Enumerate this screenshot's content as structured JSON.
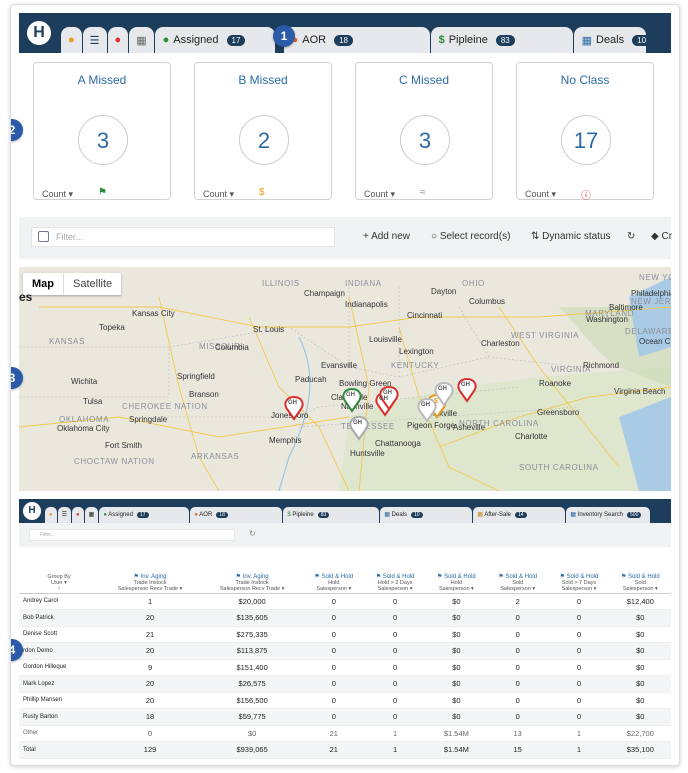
{
  "app": {
    "logo_letter": "H"
  },
  "top_tabs": [
    {
      "label": "Assigned",
      "badge": "17",
      "icon": "leaf-icon"
    },
    {
      "label": "AOR",
      "badge": "18",
      "icon": "logo-icon"
    },
    {
      "label": "Pipleine",
      "badge": "83",
      "icon": "dollar-icon"
    },
    {
      "label": "Deals",
      "badge": "10",
      "icon": "calculator-icon"
    }
  ],
  "callouts": [
    "1",
    "2",
    "3",
    "4"
  ],
  "cards": [
    {
      "title": "A Missed",
      "value": "3",
      "count_label": "Count",
      "status_icon": "flag-icon",
      "status_color": "#2e8b3d"
    },
    {
      "title": "B Missed",
      "value": "2",
      "count_label": "Count",
      "status_icon": "dollar-icon",
      "status_color": "#e89a1c"
    },
    {
      "title": "C Missed",
      "value": "3",
      "count_label": "Count",
      "status_icon": "wifi-icon",
      "status_color": "#888888"
    },
    {
      "title": "No Class",
      "value": "17",
      "count_label": "Count",
      "status_icon": "question-icon",
      "status_color": "#cc2b2b"
    }
  ],
  "toolbar": {
    "filter_placeholder": "Filter...",
    "add_new": "Add new",
    "select_records": "Select record(s)",
    "dynamic_status": "Dynamic status",
    "cr": "Cr"
  },
  "map": {
    "toggle_map": "Map",
    "toggle_satellite": "Satellite",
    "states": [
      "ILLINOIS",
      "INDIANA",
      "OHIO",
      "KANSAS",
      "MISSOURI",
      "WEST VIRGINIA",
      "KENTUCKY",
      "VIRGINIA",
      "OKLAHOMA",
      "TENNESSEE",
      "NORTH CAROLINA",
      "ARKANSAS",
      "CHEROKEE NATION",
      "CHOCTAW NATION",
      "SOUTH CAROLINA",
      "MARYLAND",
      "NEW JERSEY",
      "DELAWARE",
      "NEW YORK"
    ],
    "cities": [
      "Kansas City",
      "Indianapolis",
      "Columbus",
      "Cincinnati",
      "Washington",
      "St. Louis",
      "Louisville",
      "Springfield",
      "Evansville",
      "Richmond",
      "Paducah",
      "Bowling Green",
      "Virginia Beach",
      "Nashville",
      "Oklahoma City",
      "Memphis",
      "Greensboro",
      "Charlotte",
      "Huntsville",
      "Chattanooga",
      "Pigeon Forge",
      "Asheville",
      "Jonesboro",
      "Knoxville",
      "Tulsa",
      "Topeka",
      "Wichita",
      "Branson",
      "Champaign",
      "Dayton",
      "Roanoke",
      "Lexington",
      "Charleston",
      "Philadelphia",
      "Baltimore",
      "Fort Smith",
      "Columbia",
      "Ocean City",
      "Springdale",
      "Clarksville"
    ],
    "corner_text": "es",
    "pins": [
      {
        "color": "#d93030",
        "label": "GH"
      },
      {
        "color": "#2e8b3d",
        "label": "GH"
      },
      {
        "color": "#d93030",
        "label": "GH"
      },
      {
        "color": "#aaaaaa",
        "label": "GH"
      },
      {
        "color": "#d93030",
        "label": "GH"
      },
      {
        "color": "#e89a1c",
        "label": "$"
      },
      {
        "color": "#bbbbbb",
        "label": "GH"
      },
      {
        "color": "#d93030",
        "label": "GH"
      },
      {
        "color": "#bbbbbb",
        "label": "GH"
      }
    ]
  },
  "bottom": {
    "tabs": [
      {
        "label": "Assigned",
        "badge": "17"
      },
      {
        "label": "AOR",
        "badge": "18"
      },
      {
        "label": "Pipleine",
        "badge": "83"
      },
      {
        "label": "Deals",
        "badge": "10"
      },
      {
        "label": "After-Sale",
        "badge": "14"
      },
      {
        "label": "Inventory Search",
        "badge": "500"
      }
    ],
    "filter_placeholder": "Filter...",
    "group_by": "Group By",
    "group_by_sub": "User",
    "columns": [
      {
        "h1": "Inv. Aging",
        "h2": "Trade Instock",
        "h3": "Salesperson Recv Trade"
      },
      {
        "h1": "Inv. Aging",
        "h2": "Trade Instock",
        "h3": "Salesperson Recv Trade"
      },
      {
        "h1": "Sold & Hold",
        "h2": "Hold",
        "h3": "Salesperson"
      },
      {
        "h1": "Sold & Hold",
        "h2": "Hold > 2 Days",
        "h3": "Salesperson"
      },
      {
        "h1": "Sold & Hold",
        "h2": "Hold",
        "h3": "Salesperson"
      },
      {
        "h1": "Sold & Hold",
        "h2": "Sold",
        "h3": "Salesperson"
      },
      {
        "h1": "Sold & Hold",
        "h2": "Sold > 7 Days",
        "h3": "Salesperson"
      },
      {
        "h1": "Sold & Hold",
        "h2": "Sold",
        "h3": "Salesperson"
      }
    ],
    "rows": [
      {
        "name": "Andrey Carol",
        "values": [
          "1",
          "$20,000",
          "0",
          "0",
          "$0",
          "2",
          "0",
          "$12,400"
        ]
      },
      {
        "name": "Bob Patrick",
        "values": [
          "20",
          "$135,605",
          "0",
          "0",
          "$0",
          "0",
          "0",
          "$0"
        ]
      },
      {
        "name": "Denise Scott",
        "values": [
          "21",
          "$275,335",
          "0",
          "0",
          "$0",
          "0",
          "0",
          "$0"
        ]
      },
      {
        "name": "rdon Demo",
        "values": [
          "20",
          "$113,875",
          "0",
          "0",
          "$0",
          "0",
          "0",
          "$0"
        ]
      },
      {
        "name": "Gordon Hilleque",
        "values": [
          "9",
          "$151,400",
          "0",
          "0",
          "$0",
          "0",
          "0",
          "$0"
        ]
      },
      {
        "name": "Mark Lopez",
        "values": [
          "20",
          "$26,575",
          "0",
          "0",
          "$0",
          "0",
          "0",
          "$0"
        ]
      },
      {
        "name": "Phillip Mansen",
        "values": [
          "20",
          "$156,500",
          "0",
          "0",
          "$0",
          "0",
          "0",
          "$0"
        ]
      },
      {
        "name": "Rusty Barton",
        "values": [
          "18",
          "$59,775",
          "0",
          "0",
          "$0",
          "0",
          "0",
          "$0"
        ]
      },
      {
        "name": "Other",
        "values": [
          "0",
          "$0",
          "21",
          "1",
          "$1.54M",
          "13",
          "1",
          "$22,700"
        ]
      },
      {
        "name": "Total",
        "values": [
          "129",
          "$939,065",
          "21",
          "1",
          "$1.54M",
          "15",
          "1",
          "$35,100"
        ]
      }
    ]
  }
}
